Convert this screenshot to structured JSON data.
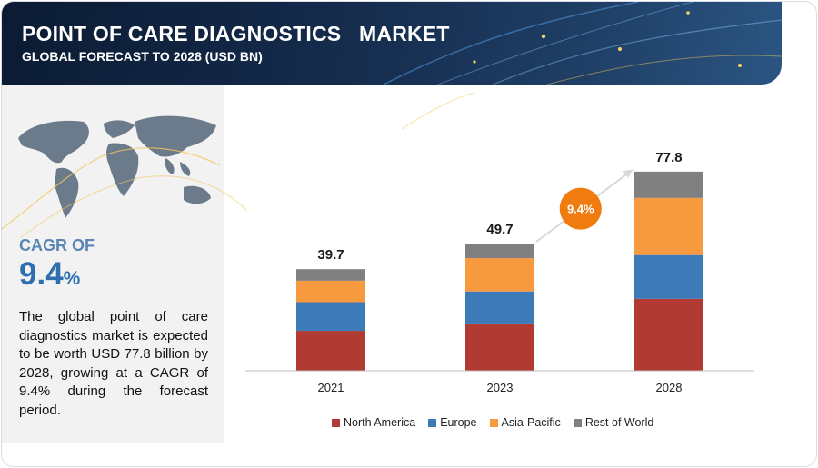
{
  "header": {
    "title": "POINT OF CARE DIAGNOSTICS   MARKET",
    "subtitle": "GLOBAL FORECAST TO 2028 (USD BN)"
  },
  "left_panel": {
    "map_icon": "world-map-icon",
    "cagr_label": "CAGR OF",
    "cagr_number": "9.4",
    "cagr_unit": "%",
    "summary": "The global point of care diagnostics market is expected to be worth USD 77.8 billion by 2028, growing at a CAGR of 9.4% during the forecast period."
  },
  "chart_data": {
    "type": "bar",
    "stacked": true,
    "categories": [
      "2021",
      "2023",
      "2028"
    ],
    "totals": [
      "39.7",
      "49.7",
      "77.8"
    ],
    "series": [
      {
        "name": "North America",
        "color": "#b13a32",
        "values": [
          15.6,
          18.5,
          28.1
        ]
      },
      {
        "name": "Europe",
        "color": "#3d7ab8",
        "values": [
          11.2,
          12.5,
          17.1
        ]
      },
      {
        "name": "Asia-Pacific",
        "color": "#f7993f",
        "values": [
          8.4,
          13.0,
          22.3
        ]
      },
      {
        "name": "Rest of World",
        "color": "#808080",
        "values": [
          4.5,
          5.7,
          10.3
        ]
      }
    ],
    "growth_badge": {
      "label": "9.4%",
      "color": "#f07c0f"
    },
    "ylim": [
      0,
      90
    ],
    "grid": false,
    "legend_position": "bottom"
  }
}
